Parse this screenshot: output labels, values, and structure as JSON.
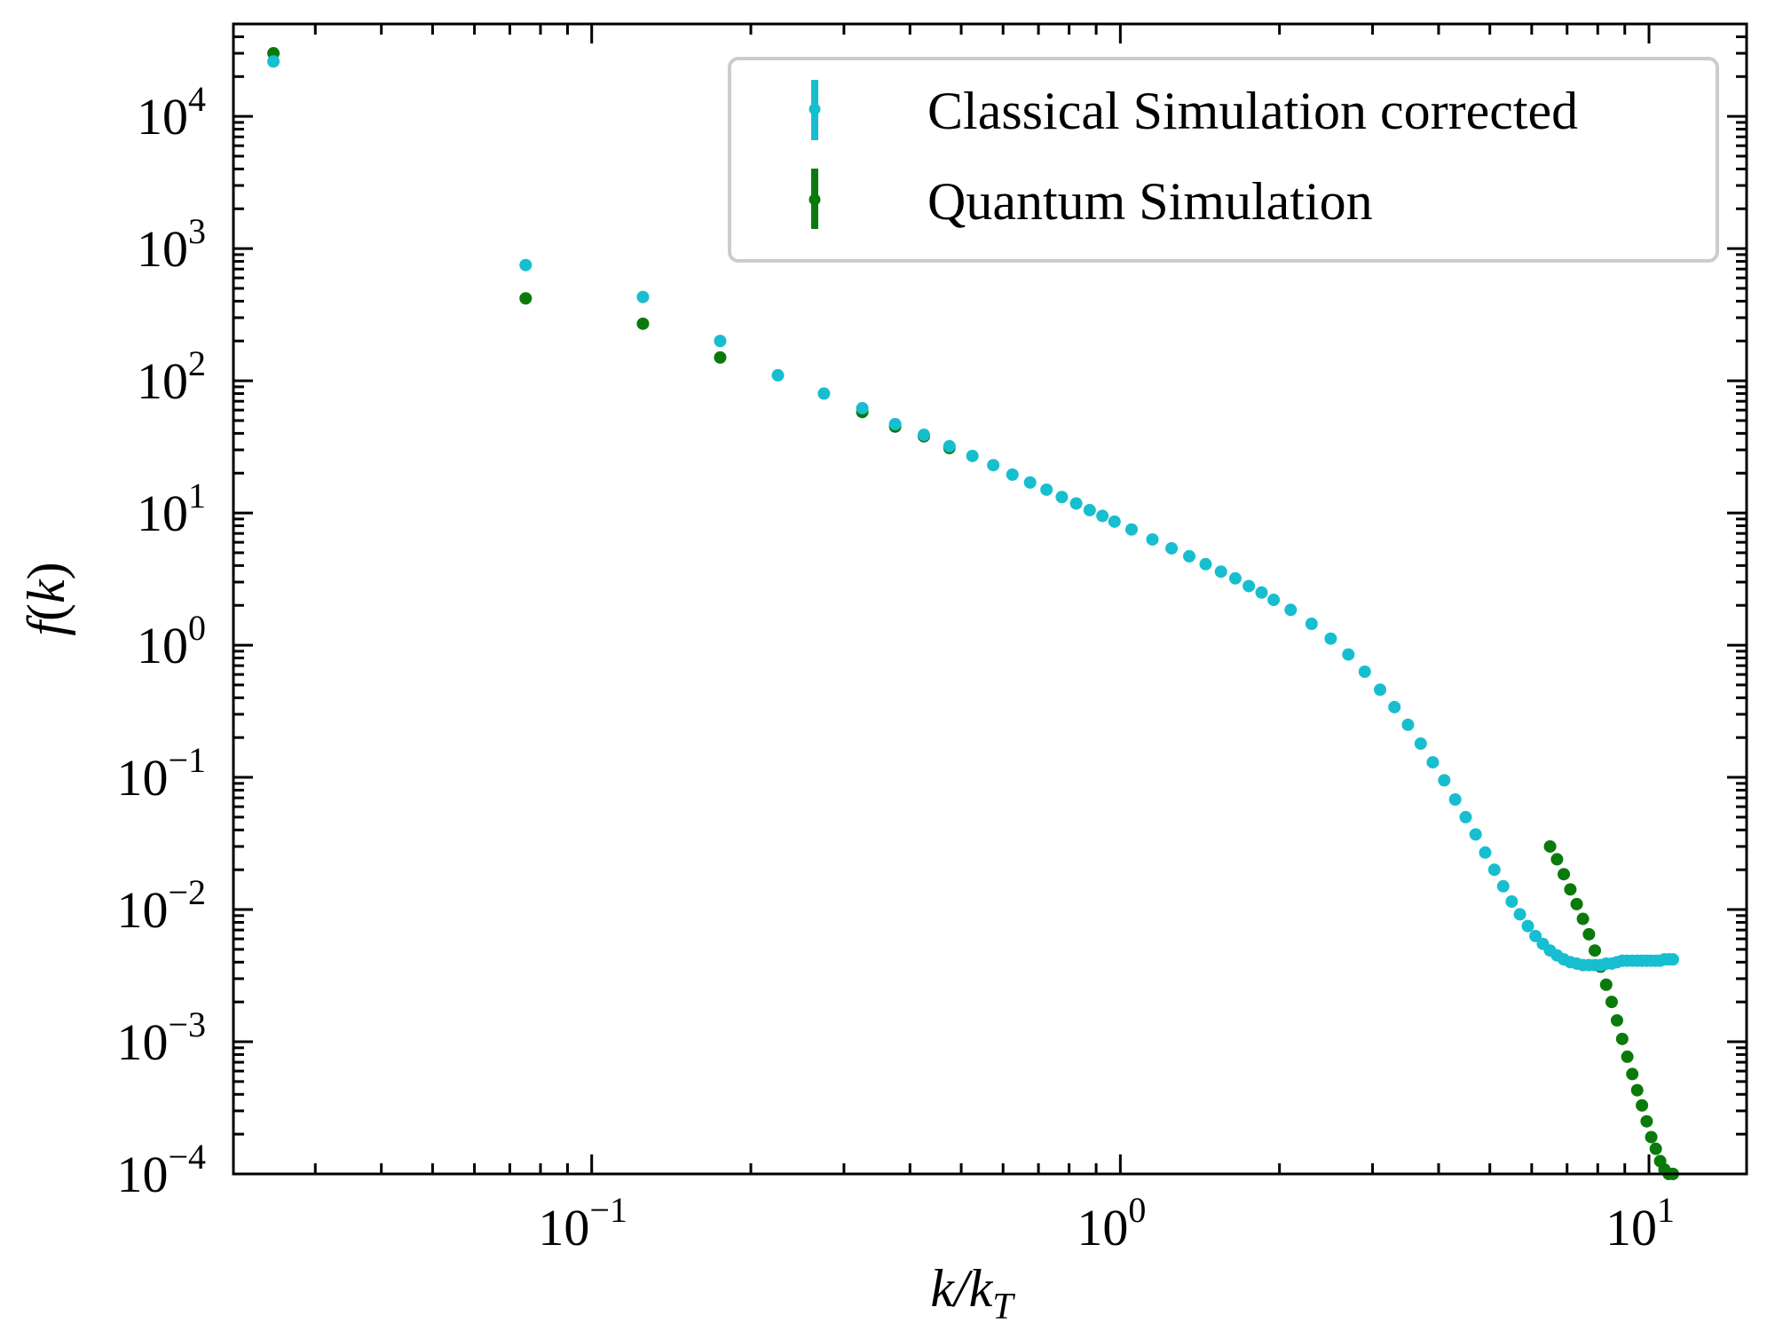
{
  "chart_data": {
    "type": "scatter",
    "title": "",
    "xlabel": "k/k_T",
    "xlabel_parts": {
      "main": "k/k",
      "sub": "T"
    },
    "ylabel": "f(k)",
    "ylabel_parts": {
      "f": "f",
      "open": "(",
      "k": "k",
      "close": ")"
    },
    "xscale": "log",
    "yscale": "log",
    "xlim": [
      0.021,
      15.3
    ],
    "ylim": [
      0.0001,
      50000
    ],
    "x_ticks": [
      {
        "value": 0.1,
        "base": "10",
        "exp": "−1"
      },
      {
        "value": 1,
        "base": "10",
        "exp": "0"
      },
      {
        "value": 10,
        "base": "10",
        "exp": "1"
      }
    ],
    "y_ticks": [
      {
        "value": 0.0001,
        "base": "10",
        "exp": "−4"
      },
      {
        "value": 0.001,
        "base": "10",
        "exp": "−3"
      },
      {
        "value": 0.01,
        "base": "10",
        "exp": "−2"
      },
      {
        "value": 0.1,
        "base": "10",
        "exp": "−1"
      },
      {
        "value": 1,
        "base": "10",
        "exp": "0"
      },
      {
        "value": 10,
        "base": "10",
        "exp": "1"
      },
      {
        "value": 100,
        "base": "10",
        "exp": "2"
      },
      {
        "value": 1000,
        "base": "10",
        "exp": "3"
      },
      {
        "value": 10000,
        "base": "10",
        "exp": "4"
      }
    ],
    "legend_position": "top-right",
    "series": [
      {
        "name": "Classical Simulation corrected",
        "color": "#17becf",
        "x": [
          0.025,
          0.075,
          0.125,
          0.175,
          0.225,
          0.275,
          0.325,
          0.375,
          0.425,
          0.475,
          0.525,
          0.575,
          0.625,
          0.675,
          0.725,
          0.775,
          0.825,
          0.875,
          0.925,
          0.975,
          1.05,
          1.15,
          1.25,
          1.35,
          1.45,
          1.55,
          1.65,
          1.75,
          1.85,
          1.95,
          2.1,
          2.3,
          2.5,
          2.7,
          2.9,
          3.1,
          3.3,
          3.5,
          3.7,
          3.9,
          4.1,
          4.3,
          4.5,
          4.7,
          4.9,
          5.1,
          5.3,
          5.5,
          5.7,
          5.9,
          6.1,
          6.3,
          6.5,
          6.7,
          6.9,
          7.1,
          7.3,
          7.5,
          7.7,
          7.9,
          8.1,
          8.3,
          8.5,
          8.7,
          8.9,
          9.1,
          9.3,
          9.5,
          9.7,
          9.9,
          10.1,
          10.3,
          10.5,
          10.7,
          10.9,
          11.1
        ],
        "y": [
          26000,
          750,
          430,
          200,
          110,
          80,
          62,
          47,
          39,
          32,
          27,
          23,
          19.5,
          17,
          15,
          13.2,
          11.8,
          10.5,
          9.5,
          8.6,
          7.5,
          6.3,
          5.4,
          4.7,
          4.1,
          3.6,
          3.2,
          2.8,
          2.5,
          2.2,
          1.85,
          1.45,
          1.12,
          0.85,
          0.63,
          0.46,
          0.34,
          0.25,
          0.18,
          0.13,
          0.095,
          0.068,
          0.05,
          0.037,
          0.027,
          0.02,
          0.015,
          0.0115,
          0.0092,
          0.0075,
          0.0063,
          0.0055,
          0.0049,
          0.0045,
          0.0042,
          0.004,
          0.0039,
          0.0038,
          0.0038,
          0.0038,
          0.0038,
          0.0039,
          0.0039,
          0.004,
          0.0041,
          0.0041,
          0.0041,
          0.0041,
          0.0041,
          0.0041,
          0.0041,
          0.0041,
          0.0041,
          0.0042,
          0.0042,
          0.0042
        ]
      },
      {
        "name": "Quantum Simulation",
        "color": "#0a7a0a",
        "x": [
          0.025,
          0.075,
          0.125,
          0.175,
          0.325,
          0.375,
          0.425,
          0.475,
          6.5,
          6.7,
          6.9,
          7.1,
          7.3,
          7.5,
          7.7,
          7.9,
          8.1,
          8.3,
          8.5,
          8.7,
          8.9,
          9.1,
          9.3,
          9.5,
          9.7,
          9.9,
          10.1,
          10.3,
          10.5,
          10.7,
          10.9,
          11.1
        ],
        "y": [
          30000,
          420,
          270,
          150,
          58,
          45,
          38,
          31,
          0.03,
          0.024,
          0.0185,
          0.0142,
          0.011,
          0.0085,
          0.0065,
          0.0049,
          0.0037,
          0.0027,
          0.002,
          0.00145,
          0.00105,
          0.00077,
          0.00057,
          0.00043,
          0.00033,
          0.00025,
          0.00019,
          0.000155,
          0.000125,
          0.000108,
          0.0001,
          0.0001
        ]
      }
    ]
  }
}
